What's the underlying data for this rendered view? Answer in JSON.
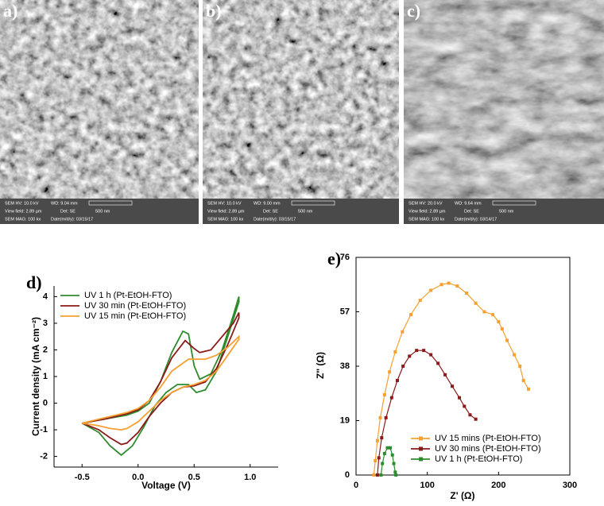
{
  "sem_panels": [
    {
      "label": "a)",
      "info": [
        "SEM HV: 10.0 kV",
        "WD: 9.04 mm",
        "View field: 2.89 µm",
        "Det: SE",
        "500 nm",
        "SEM MAG: 100 kx",
        "Date(m/d/y): 03/15/17"
      ]
    },
    {
      "label": "b)",
      "info": [
        "SEM HV: 10.0 kV",
        "WD: 9.00 mm",
        "View field: 2.89 µm",
        "Det: SE",
        "500 nm",
        "SEM MAG: 100 kx",
        "Date(m/d/y): 03/15/17"
      ]
    },
    {
      "label": "c)",
      "info": [
        "SEM HV: 20.0 kV",
        "WD: 9.64 mm",
        "View field: 2.89 µm",
        "Det: SE",
        "500 nm",
        "SEM MAG: 100 kx",
        "Date(m/d/y): 03/14/17"
      ]
    }
  ],
  "chart_data": [
    {
      "type": "line",
      "panel_label": "d)",
      "x_label": "Voltage (V)",
      "y_label": "Current density (mA cm⁻²)",
      "xlim": [
        -0.75,
        1.25
      ],
      "ylim": [
        -2.4,
        4.4
      ],
      "xticks": [
        -0.5,
        {
          "value": 0,
          "label": "0.0"
        },
        0.5,
        {
          "value": 1,
          "label": "1.0"
        }
      ],
      "yticks": [
        -2,
        -1,
        0,
        1,
        2,
        3,
        4
      ],
      "legend": "upper left",
      "markers": false,
      "series": [
        {
          "name": "UV 1 h (Pt-EtOH-FTO)",
          "color": "#2e8b2e",
          "x": [
            -0.5,
            -0.3,
            -0.1,
            0.0,
            0.1,
            0.2,
            0.3,
            0.4,
            0.45,
            0.5,
            0.55,
            0.65,
            0.75,
            0.85,
            0.9,
            0.9,
            0.8,
            0.7,
            0.6,
            0.52,
            0.45,
            0.35,
            0.25,
            0.15,
            0.05,
            -0.05,
            -0.15,
            -0.25,
            -0.35,
            -0.5
          ],
          "values": [
            -0.75,
            -0.6,
            -0.45,
            -0.3,
            0.0,
            0.8,
            1.9,
            2.7,
            2.6,
            1.4,
            0.9,
            1.1,
            2.0,
            3.3,
            4.0,
            3.8,
            2.5,
            1.2,
            0.5,
            0.4,
            0.7,
            0.7,
            0.4,
            -0.1,
            -0.9,
            -1.6,
            -1.95,
            -1.6,
            -1.1,
            -0.75
          ]
        },
        {
          "name": "UV 30 min (Pt-EtOH-FTO)",
          "color": "#8b1a1a",
          "x": [
            -0.5,
            -0.3,
            -0.1,
            0.0,
            0.1,
            0.2,
            0.3,
            0.42,
            0.5,
            0.55,
            0.65,
            0.75,
            0.85,
            0.9,
            0.9,
            0.8,
            0.7,
            0.6,
            0.5,
            0.4,
            0.3,
            0.2,
            0.1,
            0.0,
            -0.1,
            -0.15,
            -0.25,
            -0.35,
            -0.5
          ],
          "values": [
            -0.75,
            -0.6,
            -0.4,
            -0.25,
            0.1,
            0.8,
            1.7,
            2.35,
            2.05,
            1.9,
            2.0,
            2.5,
            3.0,
            3.4,
            3.2,
            2.2,
            1.3,
            0.8,
            0.65,
            0.6,
            0.4,
            0.0,
            -0.5,
            -1.1,
            -1.5,
            -1.55,
            -1.3,
            -1.0,
            -0.75
          ]
        },
        {
          "name": "UV 15 min (Pt-EtOH-FTO)",
          "color": "#f5a030",
          "x": [
            -0.5,
            -0.3,
            -0.1,
            0.0,
            0.1,
            0.2,
            0.3,
            0.45,
            0.6,
            0.7,
            0.8,
            0.9,
            0.9,
            0.8,
            0.7,
            0.6,
            0.5,
            0.4,
            0.3,
            0.2,
            0.1,
            0.0,
            -0.1,
            -0.15,
            -0.25,
            -0.35,
            -0.5
          ],
          "values": [
            -0.75,
            -0.55,
            -0.35,
            -0.2,
            0.1,
            0.6,
            1.2,
            1.65,
            1.65,
            1.8,
            2.1,
            2.5,
            2.4,
            1.8,
            1.2,
            0.85,
            0.7,
            0.6,
            0.4,
            0.1,
            -0.3,
            -0.7,
            -0.95,
            -1.0,
            -0.95,
            -0.85,
            -0.75
          ]
        }
      ]
    },
    {
      "type": "line",
      "panel_label": "e)",
      "x_label": "Z' (Ω)",
      "y_label": "Z'' (Ω)",
      "xlim": [
        0,
        300
      ],
      "ylim": [
        0,
        76
      ],
      "xticks": [
        0,
        100,
        200,
        300
      ],
      "yticks": [
        0,
        19,
        38,
        57,
        76
      ],
      "legend": "lower right",
      "markers": true,
      "series": [
        {
          "name": "UV 15 mins (Pt-EtOH-FTO)",
          "color": "#f5a030",
          "x": [
            25,
            27,
            30,
            34,
            40,
            47,
            55,
            65,
            77,
            90,
            105,
            120,
            130,
            142,
            155,
            168,
            180,
            192,
            200,
            205,
            212,
            222,
            230,
            235,
            242
          ],
          "values": [
            0,
            5,
            12,
            20,
            28,
            36,
            43,
            50,
            56,
            61,
            64.5,
            66.5,
            67,
            66,
            63.5,
            60,
            57,
            56,
            53.5,
            51,
            47,
            42,
            38,
            33,
            30
          ]
        },
        {
          "name": "UV 30 mins (Pt-EtOH-FTO)",
          "color": "#8b1a1a",
          "x": [
            30,
            32,
            36,
            42,
            50,
            58,
            66,
            75,
            85,
            95,
            105,
            115,
            125,
            135,
            145,
            152,
            160,
            168
          ],
          "values": [
            0,
            6,
            13,
            20,
            27,
            33,
            38,
            41.5,
            43.5,
            43.5,
            42,
            39,
            35,
            31,
            27,
            24,
            21,
            19.5
          ]
        },
        {
          "name": "UV 1 h (Pt-EtOH-FTO)",
          "color": "#2e8b2e",
          "x": [
            35,
            37,
            40,
            44,
            48,
            51,
            53,
            55,
            56
          ],
          "values": [
            0,
            4,
            7.5,
            9.5,
            9.5,
            7,
            4,
            1,
            0
          ]
        }
      ]
    }
  ]
}
